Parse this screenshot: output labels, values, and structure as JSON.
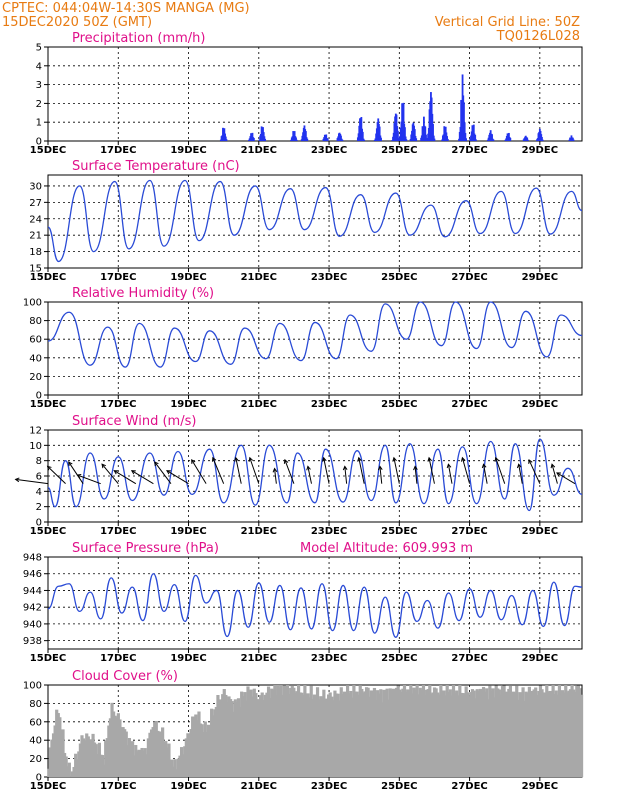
{
  "header": {
    "line1": "CPTEC:   044:04W-14:30S   MANGA (MG)",
    "line2": "15DEC2020 50Z (GMT)",
    "grid_note": "Vertical Grid Line: 50Z",
    "code": "TQ0126L028"
  },
  "colors": {
    "line": "#2a4bd6",
    "bar": "#2233ee",
    "cloud": "#a8a8a8",
    "arrow": "#000000",
    "title": "#e0108a",
    "header": "#e87b12"
  },
  "x_axis": {
    "start_day": 15,
    "end_day": 30.2,
    "ticks": [
      {
        "day": 15,
        "label": "15DEC"
      },
      {
        "day": 17,
        "label": "17DEC"
      },
      {
        "day": 19,
        "label": "19DEC"
      },
      {
        "day": 21,
        "label": "21DEC"
      },
      {
        "day": 23,
        "label": "23DEC"
      },
      {
        "day": 25,
        "label": "25DEC"
      },
      {
        "day": 27,
        "label": "27DEC"
      },
      {
        "day": 29,
        "label": "29DEC"
      }
    ]
  },
  "chart_data": [
    {
      "type": "bar",
      "title": "Precipitation (mm/h)",
      "ylim": [
        0,
        5
      ],
      "yticks": [
        0,
        1,
        2,
        3,
        4,
        5
      ],
      "bursts": [
        {
          "day": 20.0,
          "peak": 0.8
        },
        {
          "day": 20.8,
          "peak": 0.5
        },
        {
          "day": 21.1,
          "peak": 0.9
        },
        {
          "day": 22.0,
          "peak": 0.6
        },
        {
          "day": 22.3,
          "peak": 0.9
        },
        {
          "day": 22.9,
          "peak": 0.4
        },
        {
          "day": 23.3,
          "peak": 0.5
        },
        {
          "day": 23.9,
          "peak": 1.5
        },
        {
          "day": 24.4,
          "peak": 1.3
        },
        {
          "day": 24.9,
          "peak": 1.7
        },
        {
          "day": 25.1,
          "peak": 2.3
        },
        {
          "day": 25.4,
          "peak": 1.1
        },
        {
          "day": 25.7,
          "peak": 1.3
        },
        {
          "day": 25.9,
          "peak": 2.9
        },
        {
          "day": 26.3,
          "peak": 0.9
        },
        {
          "day": 26.8,
          "peak": 3.6
        },
        {
          "day": 27.1,
          "peak": 1.0
        },
        {
          "day": 27.6,
          "peak": 0.6
        },
        {
          "day": 28.1,
          "peak": 0.5
        },
        {
          "day": 28.6,
          "peak": 0.3
        },
        {
          "day": 29.0,
          "peak": 0.7
        },
        {
          "day": 29.9,
          "peak": 0.3
        }
      ]
    },
    {
      "type": "line",
      "title": "Surface Temperature (nC)",
      "ylim": [
        15,
        32
      ],
      "yticks": [
        15,
        18,
        21,
        24,
        27,
        30
      ],
      "x": [
        15.0,
        15.3,
        15.9,
        16.3,
        16.9,
        17.3,
        17.9,
        18.3,
        18.9,
        19.3,
        19.9,
        20.3,
        20.9,
        21.3,
        21.9,
        22.3,
        22.9,
        23.3,
        23.9,
        24.3,
        24.9,
        25.3,
        25.9,
        26.3,
        26.9,
        27.3,
        27.9,
        28.3,
        28.9,
        29.3,
        29.9,
        30.2
      ],
      "y": [
        22.5,
        16.2,
        30.0,
        18.0,
        30.8,
        18.5,
        31.0,
        19.0,
        31.0,
        20.0,
        30.8,
        21.0,
        30.0,
        22.0,
        29.5,
        22.0,
        29.7,
        20.8,
        28.4,
        21.5,
        28.7,
        21.0,
        26.5,
        20.7,
        27.3,
        21.3,
        29.0,
        21.3,
        29.6,
        21.2,
        29.0,
        25.5
      ]
    },
    {
      "type": "line",
      "title": "Relative Humidity (%)",
      "ylim": [
        0,
        100
      ],
      "yticks": [
        0,
        20,
        40,
        60,
        80,
        100
      ],
      "x": [
        15.0,
        15.6,
        16.2,
        16.7,
        17.2,
        17.6,
        18.2,
        18.6,
        19.2,
        19.6,
        20.2,
        20.6,
        21.2,
        21.6,
        22.2,
        22.6,
        23.2,
        23.6,
        24.2,
        24.6,
        25.2,
        25.6,
        26.2,
        26.6,
        27.2,
        27.6,
        28.2,
        28.6,
        29.2,
        29.6,
        30.2
      ],
      "y": [
        58,
        89,
        32,
        73,
        30,
        77,
        30,
        72,
        36,
        69,
        33,
        72,
        39,
        77,
        37,
        78,
        39,
        86,
        47,
        98,
        60,
        100,
        53,
        100,
        50,
        100,
        51,
        90,
        41,
        86,
        64
      ]
    },
    {
      "type": "line",
      "title": "Surface Wind (m/s)",
      "ylim": [
        0,
        12
      ],
      "yticks": [
        0,
        2,
        4,
        6,
        8,
        10,
        12
      ],
      "x": [
        15.0,
        15.2,
        15.5,
        15.8,
        16.2,
        16.6,
        17.0,
        17.4,
        17.9,
        18.3,
        18.7,
        19.1,
        19.6,
        20.0,
        20.5,
        20.9,
        21.3,
        21.8,
        22.1,
        22.6,
        22.9,
        23.4,
        23.8,
        24.2,
        24.6,
        24.9,
        25.3,
        25.7,
        26.1,
        26.4,
        26.8,
        27.2,
        27.6,
        28.0,
        28.3,
        28.7,
        29.0,
        29.4,
        29.8,
        30.2
      ],
      "y": [
        4.5,
        2.0,
        8.0,
        2.0,
        9.0,
        3.0,
        8.5,
        2.8,
        9.0,
        3.5,
        9.2,
        3.6,
        9.5,
        2.5,
        10.0,
        2.2,
        10.0,
        2.5,
        9.0,
        2.5,
        9.5,
        2.6,
        9.3,
        2.8,
        10.0,
        2.5,
        10.2,
        2.4,
        9.5,
        2.4,
        9.8,
        2.4,
        10.5,
        3.0,
        10.2,
        1.5,
        10.8,
        3.5,
        7.0,
        3.6
      ],
      "arrows": [
        {
          "day": 15.0,
          "u": -1.8,
          "v": -0.2
        },
        {
          "day": 15.5,
          "u": -1.0,
          "v": -0.8
        },
        {
          "day": 16.0,
          "u": -0.8,
          "v": -1.0
        },
        {
          "day": 16.5,
          "u": -1.3,
          "v": -0.4
        },
        {
          "day": 17.0,
          "u": -0.9,
          "v": -0.9
        },
        {
          "day": 17.5,
          "u": -1.2,
          "v": -0.6
        },
        {
          "day": 18.0,
          "u": -1.2,
          "v": -0.6
        },
        {
          "day": 18.5,
          "u": -0.9,
          "v": -1.0
        },
        {
          "day": 19.0,
          "u": -1.2,
          "v": -0.6
        },
        {
          "day": 19.5,
          "u": -0.8,
          "v": -1.1
        },
        {
          "day": 20.0,
          "u": -0.6,
          "v": -1.2
        },
        {
          "day": 20.5,
          "u": -0.3,
          "v": -1.2
        },
        {
          "day": 21.0,
          "u": -0.5,
          "v": -1.2
        },
        {
          "day": 21.5,
          "u": -0.1,
          "v": -0.7
        },
        {
          "day": 22.0,
          "u": -0.5,
          "v": -1.1
        },
        {
          "day": 22.5,
          "u": -0.2,
          "v": -0.8
        },
        {
          "day": 23.0,
          "u": -0.3,
          "v": -1.2
        },
        {
          "day": 23.5,
          "u": -0.1,
          "v": -0.8
        },
        {
          "day": 24.0,
          "u": -0.3,
          "v": -1.2
        },
        {
          "day": 24.5,
          "u": -0.1,
          "v": -0.8
        },
        {
          "day": 25.0,
          "u": -0.3,
          "v": -1.2
        },
        {
          "day": 25.5,
          "u": -0.1,
          "v": -0.8
        },
        {
          "day": 26.0,
          "u": -0.3,
          "v": -1.2
        },
        {
          "day": 26.5,
          "u": -0.2,
          "v": -0.9
        },
        {
          "day": 27.0,
          "u": -0.4,
          "v": -1.2
        },
        {
          "day": 27.5,
          "u": -0.2,
          "v": -0.9
        },
        {
          "day": 28.0,
          "u": -0.5,
          "v": -1.2
        },
        {
          "day": 28.5,
          "u": -0.2,
          "v": -0.9
        },
        {
          "day": 29.0,
          "u": -0.6,
          "v": -1.1
        },
        {
          "day": 29.5,
          "u": -0.3,
          "v": -0.9
        },
        {
          "day": 30.0,
          "u": -1.0,
          "v": -0.5
        }
      ]
    },
    {
      "type": "line",
      "title": "Surface Pressure (hPa)",
      "subtitle": "Model Altitude: 609.993 m",
      "ylim": [
        937,
        948
      ],
      "yticks": [
        938,
        940,
        942,
        944,
        946,
        948
      ],
      "x": [
        15.0,
        15.3,
        15.6,
        15.9,
        16.2,
        16.5,
        16.8,
        17.1,
        17.4,
        17.7,
        18.0,
        18.3,
        18.6,
        18.9,
        19.2,
        19.5,
        19.8,
        20.1,
        20.4,
        20.7,
        21.0,
        21.3,
        21.6,
        21.9,
        22.2,
        22.5,
        22.8,
        23.1,
        23.4,
        23.7,
        24.0,
        24.3,
        24.6,
        24.9,
        25.2,
        25.5,
        25.8,
        26.1,
        26.4,
        26.7,
        27.0,
        27.3,
        27.6,
        27.9,
        28.2,
        28.5,
        28.8,
        29.1,
        29.4,
        29.7,
        30.0,
        30.2
      ],
      "y": [
        941.8,
        944.5,
        944.8,
        941.5,
        943.8,
        940.6,
        945.5,
        941.3,
        944.4,
        940.4,
        946.0,
        941.5,
        944.7,
        940.3,
        945.8,
        942.5,
        944.0,
        938.5,
        944.0,
        939.6,
        944.9,
        940.2,
        944.6,
        939.3,
        944.3,
        939.4,
        944.8,
        939.2,
        944.6,
        939.2,
        944.4,
        938.9,
        943.2,
        938.4,
        943.8,
        940.3,
        942.8,
        939.5,
        943.7,
        940.4,
        944.2,
        940.8,
        944.0,
        940.5,
        943.4,
        939.9,
        944.0,
        939.7,
        945.0,
        939.8,
        944.5,
        944.4
      ]
    },
    {
      "type": "area",
      "title": "Cloud Cover (%)",
      "ylim": [
        0,
        100
      ],
      "yticks": [
        0,
        20,
        40,
        60,
        80,
        100
      ],
      "x": [
        15.0,
        15.1,
        15.3,
        15.5,
        15.65,
        15.8,
        16.0,
        16.3,
        16.6,
        16.8,
        17.0,
        17.3,
        17.6,
        17.8,
        18.0,
        18.3,
        18.6,
        18.9,
        19.2,
        19.5,
        19.8,
        20.0,
        20.3,
        20.6,
        20.8,
        21.0,
        21.5,
        22.0,
        22.5,
        23.0,
        23.5,
        24.0,
        24.5,
        25.0,
        25.5,
        26.0,
        26.5,
        27.0,
        27.5,
        28.0,
        28.5,
        29.0,
        29.5,
        30.0,
        30.2
      ],
      "y": [
        0,
        40,
        75,
        25,
        0,
        20,
        45,
        40,
        20,
        75,
        65,
        40,
        25,
        30,
        60,
        45,
        10,
        35,
        70,
        50,
        80,
        92,
        78,
        90,
        95,
        85,
        98,
        96,
        90,
        88,
        92,
        95,
        90,
        96,
        97,
        94,
        95,
        92,
        93,
        96,
        90,
        95,
        94,
        97,
        96
      ]
    }
  ]
}
